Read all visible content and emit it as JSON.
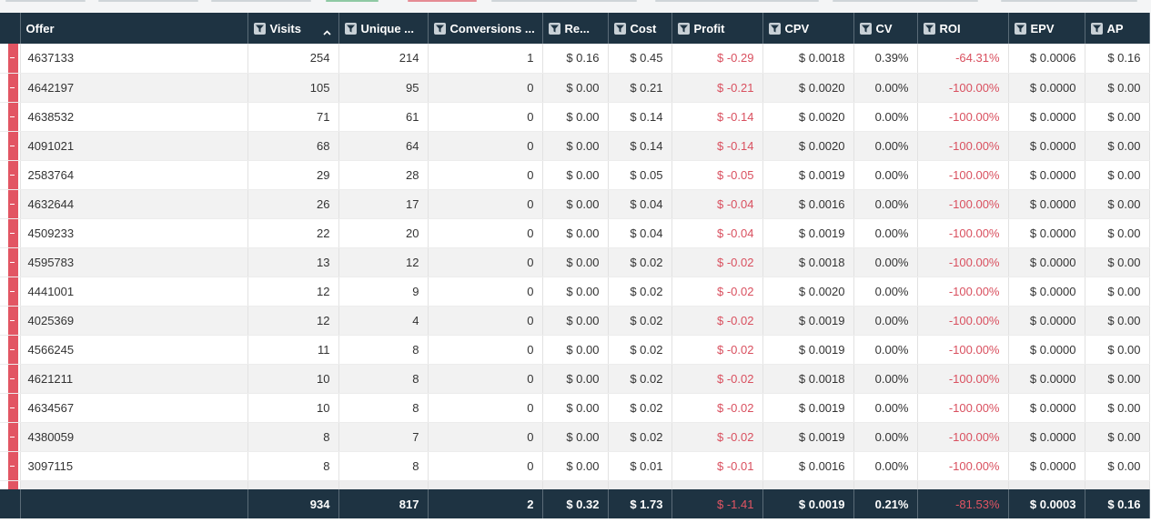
{
  "colors": {
    "header_bg": "#1e3342",
    "negative": "#d9505f",
    "row_marker": "#e25563"
  },
  "columns": [
    {
      "label": "Offer",
      "filter": false,
      "sort": false
    },
    {
      "label": "Visits",
      "filter": true,
      "sort": true
    },
    {
      "label": "Unique ...",
      "filter": true,
      "sort": false
    },
    {
      "label": "Conversions ...",
      "filter": true,
      "sort": false
    },
    {
      "label": "Re...",
      "filter": true,
      "sort": false
    },
    {
      "label": "Cost",
      "filter": true,
      "sort": false
    },
    {
      "label": "Profit",
      "filter": true,
      "sort": false
    },
    {
      "label": "CPV",
      "filter": true,
      "sort": false
    },
    {
      "label": "CV",
      "filter": true,
      "sort": false
    },
    {
      "label": "ROI",
      "filter": true,
      "sort": false
    },
    {
      "label": "EPV",
      "filter": true,
      "sort": false
    },
    {
      "label": "AP",
      "filter": true,
      "sort": false
    }
  ],
  "icons": {
    "filter": "filter-icon",
    "sort": "sort-ascending-icon"
  },
  "rows": [
    [
      "4637133",
      "254",
      "214",
      "1",
      "$ 0.16",
      "$ 0.45",
      "$ -0.29",
      "$ 0.0018",
      "0.39%",
      "-64.31%",
      "$ 0.0006",
      "$ 0.16"
    ],
    [
      "4642197",
      "105",
      "95",
      "0",
      "$ 0.00",
      "$ 0.21",
      "$ -0.21",
      "$ 0.0020",
      "0.00%",
      "-100.00%",
      "$ 0.0000",
      "$ 0.00"
    ],
    [
      "4638532",
      "71",
      "61",
      "0",
      "$ 0.00",
      "$ 0.14",
      "$ -0.14",
      "$ 0.0020",
      "0.00%",
      "-100.00%",
      "$ 0.0000",
      "$ 0.00"
    ],
    [
      "4091021",
      "68",
      "64",
      "0",
      "$ 0.00",
      "$ 0.14",
      "$ -0.14",
      "$ 0.0020",
      "0.00%",
      "-100.00%",
      "$ 0.0000",
      "$ 0.00"
    ],
    [
      "2583764",
      "29",
      "28",
      "0",
      "$ 0.00",
      "$ 0.05",
      "$ -0.05",
      "$ 0.0019",
      "0.00%",
      "-100.00%",
      "$ 0.0000",
      "$ 0.00"
    ],
    [
      "4632644",
      "26",
      "17",
      "0",
      "$ 0.00",
      "$ 0.04",
      "$ -0.04",
      "$ 0.0016",
      "0.00%",
      "-100.00%",
      "$ 0.0000",
      "$ 0.00"
    ],
    [
      "4509233",
      "22",
      "20",
      "0",
      "$ 0.00",
      "$ 0.04",
      "$ -0.04",
      "$ 0.0019",
      "0.00%",
      "-100.00%",
      "$ 0.0000",
      "$ 0.00"
    ],
    [
      "4595783",
      "13",
      "12",
      "0",
      "$ 0.00",
      "$ 0.02",
      "$ -0.02",
      "$ 0.0018",
      "0.00%",
      "-100.00%",
      "$ 0.0000",
      "$ 0.00"
    ],
    [
      "4441001",
      "12",
      "9",
      "0",
      "$ 0.00",
      "$ 0.02",
      "$ -0.02",
      "$ 0.0020",
      "0.00%",
      "-100.00%",
      "$ 0.0000",
      "$ 0.00"
    ],
    [
      "4025369",
      "12",
      "4",
      "0",
      "$ 0.00",
      "$ 0.02",
      "$ -0.02",
      "$ 0.0019",
      "0.00%",
      "-100.00%",
      "$ 0.0000",
      "$ 0.00"
    ],
    [
      "4566245",
      "11",
      "8",
      "0",
      "$ 0.00",
      "$ 0.02",
      "$ -0.02",
      "$ 0.0019",
      "0.00%",
      "-100.00%",
      "$ 0.0000",
      "$ 0.00"
    ],
    [
      "4621211",
      "10",
      "8",
      "0",
      "$ 0.00",
      "$ 0.02",
      "$ -0.02",
      "$ 0.0018",
      "0.00%",
      "-100.00%",
      "$ 0.0000",
      "$ 0.00"
    ],
    [
      "4634567",
      "10",
      "8",
      "0",
      "$ 0.00",
      "$ 0.02",
      "$ -0.02",
      "$ 0.0019",
      "0.00%",
      "-100.00%",
      "$ 0.0000",
      "$ 0.00"
    ],
    [
      "4380059",
      "8",
      "7",
      "0",
      "$ 0.00",
      "$ 0.02",
      "$ -0.02",
      "$ 0.0019",
      "0.00%",
      "-100.00%",
      "$ 0.0000",
      "$ 0.00"
    ],
    [
      "3097115",
      "8",
      "8",
      "0",
      "$ 0.00",
      "$ 0.01",
      "$ -0.01",
      "$ 0.0016",
      "0.00%",
      "-100.00%",
      "$ 0.0000",
      "$ 0.00"
    ]
  ],
  "totals": [
    "",
    "934",
    "817",
    "2",
    "$ 0.32",
    "$ 1.73",
    "$ -1.41",
    "$ 0.0019",
    "0.21%",
    "-81.53%",
    "$ 0.0003",
    "$ 0.16"
  ],
  "negative_columns": [
    6,
    9
  ]
}
